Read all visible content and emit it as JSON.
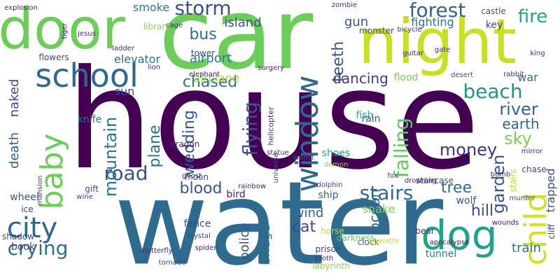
{
  "words": [
    {
      "text": "house",
      "color": "#440154",
      "vertical": false
    },
    {
      "text": "water",
      "color": "#2f6b8e",
      "vertical": false
    },
    {
      "text": "car",
      "color": "#6ccd5a",
      "vertical": false
    },
    {
      "text": "night",
      "color": "#c8e020",
      "vertical": false
    },
    {
      "text": "door",
      "color": "#6ccd5a",
      "vertical": false
    },
    {
      "text": "school",
      "color": "#2e6a8e",
      "vertical": false
    },
    {
      "text": "window",
      "color": "#2e6a8e",
      "vertical": true
    },
    {
      "text": "baby",
      "color": "#6ccd5a",
      "vertical": true
    },
    {
      "text": "child",
      "color": "#d3e11f",
      "vertical": true
    },
    {
      "text": "dog",
      "color": "#20a386",
      "vertical": false
    },
    {
      "text": "city",
      "color": "#2e6a8e",
      "vertical": false
    },
    {
      "text": "road",
      "color": "#3b518b",
      "vertical": false
    },
    {
      "text": "stairs",
      "color": "#2e6a8e",
      "vertical": false
    },
    {
      "text": "blood",
      "color": "#3a538b",
      "vertical": false
    },
    {
      "text": "storm",
      "color": "#3b518b",
      "vertical": false
    },
    {
      "text": "forest",
      "color": "#32648e",
      "vertical": false
    },
    {
      "text": "fire",
      "color": "#20a386",
      "vertical": false
    },
    {
      "text": "beach",
      "color": "#1f968b",
      "vertical": false
    },
    {
      "text": "river",
      "color": "#33638d",
      "vertical": false
    },
    {
      "text": "earth",
      "color": "#31688e",
      "vertical": false
    },
    {
      "text": "sky",
      "color": "#7ad151",
      "vertical": false
    },
    {
      "text": "money",
      "color": "#46327e",
      "vertical": false
    },
    {
      "text": "falling",
      "color": "#5ec962",
      "vertical": true
    },
    {
      "text": "flying",
      "color": "#3b528b",
      "vertical": true
    },
    {
      "text": "mountain",
      "color": "#2a788e",
      "vertical": true
    },
    {
      "text": "wedding",
      "color": "#3a548c",
      "vertical": true
    },
    {
      "text": "plane",
      "color": "#2c728e",
      "vertical": true
    },
    {
      "text": "teeth",
      "color": "#3a548c",
      "vertical": true
    },
    {
      "text": "bus",
      "color": "#2e6e8e",
      "vertical": false
    },
    {
      "text": "airport",
      "color": "#2a788e",
      "vertical": false
    },
    {
      "text": "island",
      "color": "#3a538b",
      "vertical": false
    },
    {
      "text": "smoke",
      "color": "#2a788e",
      "vertical": false
    },
    {
      "text": "elevator",
      "color": "#2c728e",
      "vertical": false
    },
    {
      "text": "flowers",
      "color": "#3e4a89",
      "vertical": false
    },
    {
      "text": "chased",
      "color": "#2d708e",
      "vertical": false
    },
    {
      "text": "naked",
      "color": "#3e4a89",
      "vertical": true
    },
    {
      "text": "death",
      "color": "#35608d",
      "vertical": true
    },
    {
      "text": "knife",
      "color": "#2c728e",
      "vertical": false
    },
    {
      "text": "sun",
      "color": "#3e4989",
      "vertical": false
    },
    {
      "text": "dancing",
      "color": "#453781",
      "vertical": false
    },
    {
      "text": "gun",
      "color": "#39568c",
      "vertical": false
    },
    {
      "text": "fighting",
      "color": "#2d718e",
      "vertical": false
    },
    {
      "text": "key",
      "color": "#404688",
      "vertical": false
    },
    {
      "text": "war",
      "color": "#2e6e8e",
      "vertical": false
    },
    {
      "text": "garden",
      "color": "#3b528b",
      "vertical": true
    },
    {
      "text": "tree",
      "color": "#2e6d8e",
      "vertical": false
    },
    {
      "text": "fish",
      "color": "#2ab07f",
      "vertical": false
    },
    {
      "text": "rain",
      "color": "#39568c",
      "vertical": false
    },
    {
      "text": "shoes",
      "color": "#22a884",
      "vertical": false
    },
    {
      "text": "cat",
      "color": "#3e4989",
      "vertical": false
    },
    {
      "text": "hill",
      "color": "#3c4f8a",
      "vertical": false
    },
    {
      "text": "train",
      "color": "#2e6d8e",
      "vertical": false
    },
    {
      "text": "ocean",
      "color": "#31688e",
      "vertical": true
    },
    {
      "text": "wind",
      "color": "#31688e",
      "vertical": false
    },
    {
      "text": "police",
      "color": "#3c4f8a",
      "vertical": true
    },
    {
      "text": "bridge",
      "color": "#2d718e",
      "vertical": true
    },
    {
      "text": "fence",
      "color": "#3f4788",
      "vertical": false
    },
    {
      "text": "bird",
      "color": "#481f70",
      "vertical": false
    },
    {
      "text": "ship",
      "color": "#34608d",
      "vertical": false
    },
    {
      "text": "crying",
      "color": "#2d708e",
      "vertical": false
    },
    {
      "text": "book",
      "color": "#453882",
      "vertical": false
    },
    {
      "text": "wheel",
      "color": "#3b528b",
      "vertical": false
    },
    {
      "text": "gift",
      "color": "#3a548c",
      "vertical": false
    },
    {
      "text": "wine",
      "color": "#404588",
      "vertical": false
    },
    {
      "text": "ice",
      "color": "#433e85",
      "vertical": false
    },
    {
      "text": "moon",
      "color": "#3e4a89",
      "vertical": false
    },
    {
      "text": "dragon",
      "color": "#482475",
      "vertical": false
    },
    {
      "text": "helicopter",
      "color": "#472c7a",
      "vertical": true
    },
    {
      "text": "airplane",
      "color": "#a5db36",
      "vertical": false
    },
    {
      "text": "tower",
      "color": "#3e4a89",
      "vertical": false
    },
    {
      "text": "lion",
      "color": "#46307e",
      "vertical": false
    },
    {
      "text": "elephant",
      "color": "#482173",
      "vertical": false
    },
    {
      "text": "flood",
      "color": "#75d054",
      "vertical": false
    },
    {
      "text": "desert",
      "color": "#3b528b",
      "vertical": false
    },
    {
      "text": "snake",
      "color": "#7ad151",
      "vertical": false
    },
    {
      "text": "wolf",
      "color": "#3b528b",
      "vertical": false
    },
    {
      "text": "clock",
      "color": "#3c4f8a",
      "vertical": false
    },
    {
      "text": "darkness",
      "color": "#5ec962",
      "vertical": false
    },
    {
      "text": "prison",
      "color": "#414487",
      "vertical": false
    },
    {
      "text": "tunnel",
      "color": "#277f8e",
      "vertical": false
    },
    {
      "text": "bear",
      "color": "#453882",
      "vertical": false
    },
    {
      "text": "horse",
      "color": "#b5de2b",
      "vertical": false
    },
    {
      "text": "chase",
      "color": "#3c4f8a",
      "vertical": false
    },
    {
      "text": "trapped",
      "color": "#3d4d8a",
      "vertical": true
    },
    {
      "text": "staircase",
      "color": "#3c4f8a",
      "vertical": false
    },
    {
      "text": "monster",
      "color": "#404688",
      "vertical": false
    },
    {
      "text": "gate",
      "color": "#482878",
      "vertical": false
    },
    {
      "text": "guitar",
      "color": "#482475",
      "vertical": false
    },
    {
      "text": "surgery",
      "color": "#482878",
      "vertical": false
    },
    {
      "text": "castle",
      "color": "#38598c",
      "vertical": false
    },
    {
      "text": "cliff",
      "color": "#453781",
      "vertical": true
    },
    {
      "text": "mirror",
      "color": "#472d7b",
      "vertical": false
    },
    {
      "text": "bomb",
      "color": "#482878",
      "vertical": false
    },
    {
      "text": "library",
      "color": "#8fd744",
      "vertical": false
    },
    {
      "text": "jesus",
      "color": "#472d7b",
      "vertical": false
    },
    {
      "text": "ladder",
      "color": "#482878",
      "vertical": false
    },
    {
      "text": "drowning",
      "color": "#482475",
      "vertical": false
    },
    {
      "text": "spider",
      "color": "#482475",
      "vertical": false
    },
    {
      "text": "crystal",
      "color": "#404588",
      "vertical": false
    },
    {
      "text": "tooth",
      "color": "#482878",
      "vertical": false
    },
    {
      "text": "labyrinth",
      "color": "#8fd744",
      "vertical": false
    },
    {
      "text": "shadow",
      "color": "#433e85",
      "vertical": false
    },
    {
      "text": "mansion",
      "color": "#453882",
      "vertical": true
    },
    {
      "text": "tornado",
      "color": "#404588",
      "vertical": false
    },
    {
      "text": "explosion",
      "color": "#482878",
      "vertical": false
    },
    {
      "text": "cage",
      "color": "#482475",
      "vertical": false
    },
    {
      "text": "zombie",
      "color": "#472d7b",
      "vertical": false
    },
    {
      "text": "bicycle",
      "color": "#46307e",
      "vertical": false
    },
    {
      "text": "rabbit",
      "color": "#472d7b",
      "vertical": false
    },
    {
      "text": "king",
      "color": "#46307e",
      "vertical": false
    },
    {
      "text": "ghost",
      "color": "#482173",
      "vertical": false
    },
    {
      "text": "cigarette",
      "color": "#b5de2b",
      "vertical": false
    },
    {
      "text": "universe",
      "color": "#414487",
      "vertical": true
    },
    {
      "text": "statue",
      "color": "#482475",
      "vertical": false
    },
    {
      "text": "apocalypse",
      "color": "#471164",
      "vertical": false
    },
    {
      "text": "butterfly",
      "color": "#482475",
      "vertical": false
    },
    {
      "text": "rainbow",
      "color": "#482878",
      "vertical": false
    },
    {
      "text": "wallet",
      "color": "#3b528b",
      "vertical": false
    },
    {
      "text": "demon",
      "color": "#8fd744",
      "vertical": false
    },
    {
      "text": "fox",
      "color": "#453882",
      "vertical": false
    },
    {
      "text": "dolphin",
      "color": "#404588",
      "vertical": false
    },
    {
      "text": "murder",
      "color": "#3b528b",
      "vertical": false
    },
    {
      "text": "wounds",
      "color": "#471164",
      "vertical": false
    },
    {
      "text": "tiger",
      "color": "#481f70",
      "vertical": true
    },
    {
      "text": "stairs",
      "color": "#b5de2b",
      "vertical": true
    }
  ]
}
